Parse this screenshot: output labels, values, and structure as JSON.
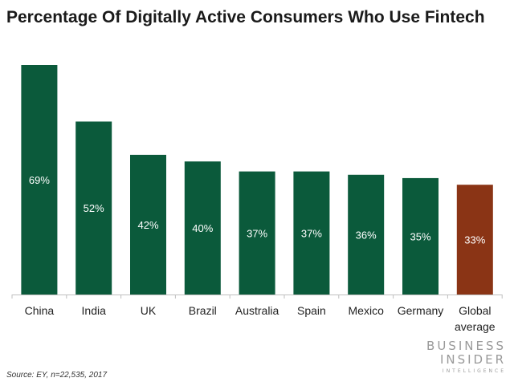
{
  "chart_data": {
    "type": "bar",
    "title": "Percentage Of Digitally Active Consumers Who Use Fintech",
    "categories": [
      "China",
      "India",
      "UK",
      "Brazil",
      "Australia",
      "Spain",
      "Mexico",
      "Germany",
      "Global average"
    ],
    "values": [
      69,
      52,
      42,
      40,
      37,
      37,
      36,
      35,
      33
    ],
    "data_labels": [
      "69%",
      "52%",
      "42%",
      "40%",
      "37%",
      "37%",
      "36%",
      "35%",
      "33%"
    ],
    "colors": [
      "#0b5a3b",
      "#0b5a3b",
      "#0b5a3b",
      "#0b5a3b",
      "#0b5a3b",
      "#0b5a3b",
      "#0b5a3b",
      "#0b5a3b",
      "#8a3415"
    ],
    "ylim": [
      0,
      69
    ],
    "grid": false,
    "xlabel": "",
    "ylabel": ""
  },
  "source": "Source: EY, n=22,535, 2017",
  "logo": {
    "line1": "BUSINESS",
    "line2": "INSIDER",
    "line3": "INTELLIGENCE"
  }
}
